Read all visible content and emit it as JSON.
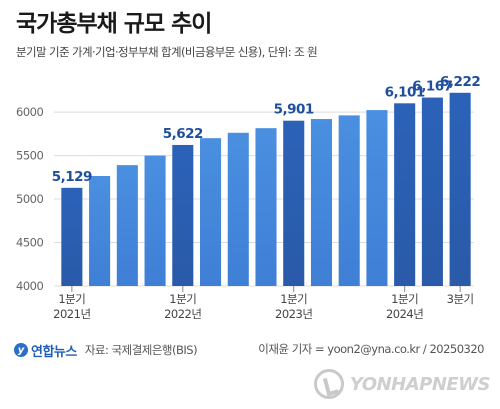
{
  "title": "국가총부채 규모 추이",
  "subtitle": "분기말 기준 가계·기업·정부부채 합계(비금융부문 신용), 단위: 조 원",
  "chart_data": {
    "type": "bar",
    "categories": [
      "2021-Q1",
      "2021-Q2",
      "2021-Q3",
      "2021-Q4",
      "2022-Q1",
      "2022-Q2",
      "2022-Q3",
      "2022-Q4",
      "2023-Q1",
      "2023-Q2",
      "2023-Q3",
      "2023-Q4",
      "2024-Q1",
      "2024-Q2",
      "2024-Q3"
    ],
    "values": [
      5129,
      5265,
      5390,
      5500,
      5622,
      5700,
      5762,
      5815,
      5901,
      5920,
      5962,
      6023,
      6101,
      6167,
      6222
    ],
    "value_labels": [
      {
        "index": 0,
        "text": "5,129"
      },
      {
        "index": 4,
        "text": "5,622"
      },
      {
        "index": 8,
        "text": "5,901"
      },
      {
        "index": 12,
        "text": "6,101"
      },
      {
        "index": 13,
        "text": "6,167"
      },
      {
        "index": 14,
        "text": "6,222"
      }
    ],
    "highlight_indices": [
      0,
      4,
      8,
      12,
      13,
      14
    ],
    "x_tick_labels": [
      {
        "index": 0,
        "lines": [
          "1분기",
          "2021년"
        ]
      },
      {
        "index": 4,
        "lines": [
          "1분기",
          "2022년"
        ]
      },
      {
        "index": 8,
        "lines": [
          "1분기",
          "2023년"
        ]
      },
      {
        "index": 12,
        "lines": [
          "1분기",
          "2024년"
        ]
      },
      {
        "index": 14,
        "lines": [
          "3분기",
          ""
        ]
      }
    ],
    "y_ticks": [
      4000,
      4500,
      5000,
      5500,
      6000
    ],
    "ylim": [
      4000,
      6300
    ],
    "grid": true,
    "colors": {
      "bar_top": "#4a8fe0",
      "bar_bottom": "#3f7fd6",
      "highlight_top": "#2b62b8",
      "highlight_bottom": "#2a5aa8",
      "label": "#1f4f9c",
      "grid": "#dcdcdc"
    }
  },
  "footer": {
    "logo_text": "연합뉴스",
    "source": "자료: 국제결제은행(BIS)",
    "credit": "이재윤 기자 = yoon2@yna.co.kr / 20250320",
    "watermark": "YONHAPNEWS"
  }
}
